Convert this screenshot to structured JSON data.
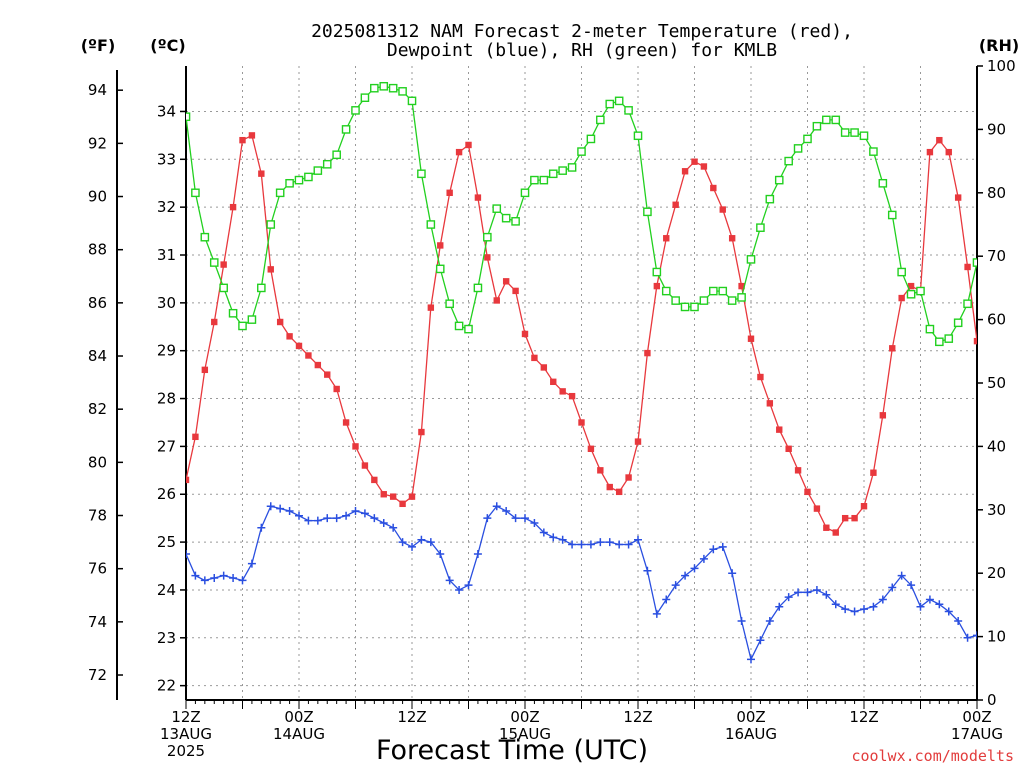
{
  "chart_data": {
    "type": "line",
    "title_lines": [
      "2025081312 NAM Forecast 2-meter Temperature (red),",
      "Dewpoint (blue), RH (green) for KMLB"
    ],
    "xlabel": "Forecast Time (UTC)",
    "credit": "coolwx.com/modelts",
    "unit_labels": {
      "fahrenheit": "(ºF)",
      "celsius": "(ºC)",
      "rh": "(RH)"
    },
    "x_ticks": [
      {
        "h": 0,
        "lines": [
          "12Z",
          "13AUG",
          "2025"
        ]
      },
      {
        "h": 12,
        "lines": [
          "00Z",
          "14AUG"
        ]
      },
      {
        "h": 24,
        "lines": [
          "12Z"
        ]
      },
      {
        "h": 36,
        "lines": [
          "00Z",
          "15AUG"
        ]
      },
      {
        "h": 48,
        "lines": [
          "12Z"
        ]
      },
      {
        "h": 60,
        "lines": [
          "00Z",
          "16AUG"
        ]
      },
      {
        "h": 72,
        "lines": [
          "12Z"
        ]
      },
      {
        "h": 84,
        "lines": [
          "00Z",
          "17AUG"
        ]
      }
    ],
    "xlim_hours": [
      0,
      84
    ],
    "ylim_celsius": [
      21.7,
      34.95
    ],
    "ylim_rh": [
      0,
      100
    ],
    "celsius_ticks": [
      22,
      23,
      24,
      25,
      26,
      27,
      28,
      29,
      30,
      31,
      32,
      33,
      34
    ],
    "fahrenheit_ticks": [
      72,
      74,
      76,
      78,
      80,
      82,
      84,
      86,
      88,
      90,
      92,
      94
    ],
    "rh_ticks": [
      0,
      10,
      20,
      30,
      40,
      50,
      60,
      70,
      80,
      90,
      100
    ],
    "grid": true,
    "series": [
      {
        "name": "Temperature (red)",
        "unit": "°C",
        "color": "#e8383d",
        "marker": "filled-square",
        "x_hours": [
          0,
          1,
          2,
          3,
          4,
          5,
          6,
          7,
          8,
          9,
          10,
          11,
          12,
          13,
          14,
          15,
          16,
          17,
          18,
          19,
          20,
          21,
          22,
          23,
          24,
          25,
          26,
          27,
          28,
          29,
          30,
          31,
          32,
          33,
          34,
          35,
          36,
          37,
          38,
          39,
          40,
          41,
          42,
          43,
          44,
          45,
          46,
          47,
          48,
          49,
          50,
          51,
          52,
          53,
          54,
          55,
          56,
          57,
          58,
          59,
          60,
          61,
          62,
          63,
          64,
          65,
          66,
          67,
          68,
          69,
          70,
          71,
          72,
          73,
          74,
          75,
          76,
          77,
          78,
          79,
          80,
          81,
          82,
          83,
          84
        ],
        "values": [
          26.3,
          27.2,
          28.6,
          29.6,
          30.8,
          32.0,
          33.4,
          33.5,
          32.7,
          30.7,
          29.6,
          29.3,
          29.1,
          28.9,
          28.7,
          28.5,
          28.2,
          27.5,
          27.0,
          26.6,
          26.3,
          26.0,
          25.95,
          25.8,
          25.95,
          27.3,
          29.9,
          31.2,
          32.3,
          33.15,
          33.3,
          32.2,
          30.95,
          30.05,
          30.45,
          30.25,
          29.35,
          28.85,
          28.65,
          28.35,
          28.15,
          28.05,
          27.5,
          26.95,
          26.5,
          26.15,
          26.05,
          26.35,
          27.1,
          28.95,
          30.35,
          31.35,
          32.05,
          32.75,
          32.95,
          32.85,
          32.4,
          31.95,
          31.35,
          30.35,
          29.25,
          28.45,
          27.9,
          27.35,
          26.95,
          26.5,
          26.05,
          25.7,
          25.3,
          25.2,
          25.5,
          25.5,
          25.75,
          26.45,
          27.65,
          29.05,
          30.1,
          30.35,
          30.25,
          33.15,
          33.4,
          33.15,
          32.2,
          30.75,
          29.2
        ]
      },
      {
        "name": "Dewpoint (blue)",
        "unit": "°C",
        "color": "#2a4fe0",
        "marker": "plus",
        "x_hours": [
          0,
          1,
          2,
          3,
          4,
          5,
          6,
          7,
          8,
          9,
          10,
          11,
          12,
          13,
          14,
          15,
          16,
          17,
          18,
          19,
          20,
          21,
          22,
          23,
          24,
          25,
          26,
          27,
          28,
          29,
          30,
          31,
          32,
          33,
          34,
          35,
          36,
          37,
          38,
          39,
          40,
          41,
          42,
          43,
          44,
          45,
          46,
          47,
          48,
          49,
          50,
          51,
          52,
          53,
          54,
          55,
          56,
          57,
          58,
          59,
          60,
          61,
          62,
          63,
          64,
          65,
          66,
          67,
          68,
          69,
          70,
          71,
          72,
          73,
          74,
          75,
          76,
          77,
          78,
          79,
          80,
          81,
          82,
          83,
          84
        ],
        "values": [
          24.75,
          24.3,
          24.2,
          24.25,
          24.3,
          24.25,
          24.2,
          24.55,
          25.3,
          25.75,
          25.7,
          25.65,
          25.55,
          25.45,
          25.45,
          25.5,
          25.5,
          25.55,
          25.65,
          25.6,
          25.5,
          25.4,
          25.3,
          25.0,
          24.9,
          25.05,
          25.0,
          24.75,
          24.2,
          24.0,
          24.1,
          24.75,
          25.5,
          25.75,
          25.65,
          25.5,
          25.5,
          25.4,
          25.2,
          25.1,
          25.05,
          24.95,
          24.95,
          24.95,
          25.0,
          25.0,
          24.95,
          24.95,
          25.05,
          24.4,
          23.5,
          23.8,
          24.1,
          24.3,
          24.45,
          24.65,
          24.85,
          24.9,
          24.35,
          23.35,
          22.55,
          22.95,
          23.35,
          23.65,
          23.85,
          23.95,
          23.95,
          24.0,
          23.9,
          23.7,
          23.6,
          23.55,
          23.6,
          23.65,
          23.8,
          24.05,
          24.3,
          24.1,
          23.65,
          23.8,
          23.7,
          23.55,
          23.35,
          23.0,
          23.05
        ]
      },
      {
        "name": "RH (green)",
        "unit": "%",
        "color": "#22d01f",
        "marker": "open-square",
        "x_hours": [
          0,
          1,
          2,
          3,
          4,
          5,
          6,
          7,
          8,
          9,
          10,
          11,
          12,
          13,
          14,
          15,
          16,
          17,
          18,
          19,
          20,
          21,
          22,
          23,
          24,
          25,
          26,
          27,
          28,
          29,
          30,
          31,
          32,
          33,
          34,
          35,
          36,
          37,
          38,
          39,
          40,
          41,
          42,
          43,
          44,
          45,
          46,
          47,
          48,
          49,
          50,
          51,
          52,
          53,
          54,
          55,
          56,
          57,
          58,
          59,
          60,
          61,
          62,
          63,
          64,
          65,
          66,
          67,
          68,
          69,
          70,
          71,
          72,
          73,
          74,
          75,
          76,
          77,
          78,
          79,
          80,
          81,
          82,
          83,
          84
        ],
        "values": [
          92,
          80,
          73,
          69,
          65,
          61,
          59,
          60,
          65,
          75,
          80,
          81.5,
          82,
          82.5,
          83.5,
          84.5,
          86,
          90,
          93,
          95,
          96.5,
          96.8,
          96.5,
          96,
          94.5,
          83,
          75,
          68,
          62.5,
          59,
          58.5,
          65,
          73,
          77.5,
          76,
          75.5,
          80,
          82,
          82,
          83,
          83.5,
          84,
          86.5,
          88.5,
          91.5,
          94,
          94.5,
          93,
          89,
          77,
          67.5,
          64.5,
          63,
          62,
          62,
          63,
          64.5,
          64.5,
          63,
          63.5,
          69.5,
          74.5,
          79,
          82,
          85,
          87,
          88.5,
          90.5,
          91.5,
          91.5,
          89.5,
          89.5,
          89,
          86.5,
          81.5,
          76.5,
          67.5,
          64,
          64.5,
          58.5,
          56.5,
          57,
          59.5,
          62.5,
          69
        ]
      }
    ]
  }
}
